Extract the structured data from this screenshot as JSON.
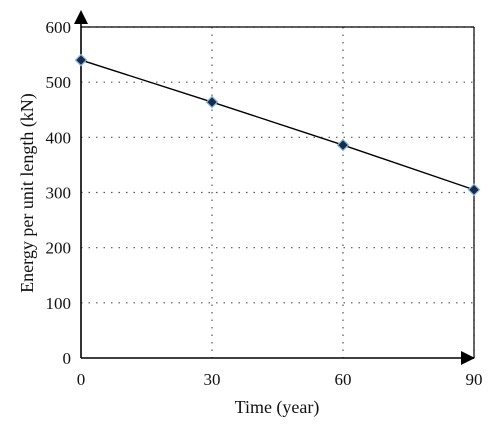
{
  "chart_data": {
    "type": "line",
    "title": "",
    "xlabel": "Time (year)",
    "ylabel": "Energy per unit length (kN)",
    "xlim": [
      0,
      90
    ],
    "ylim": [
      0,
      600
    ],
    "x_ticks": [
      0,
      30,
      60,
      90
    ],
    "y_ticks": [
      0,
      100,
      200,
      300,
      400,
      500,
      600
    ],
    "grid": true,
    "legend": "none",
    "series": [
      {
        "x": [
          0,
          30,
          60,
          90
        ],
        "y": [
          540,
          464,
          386,
          305
        ],
        "line_color": "#000000",
        "marker": "diamond",
        "marker_fill": "#1a2a4a",
        "marker_edge": "#7fb8e0"
      }
    ]
  }
}
